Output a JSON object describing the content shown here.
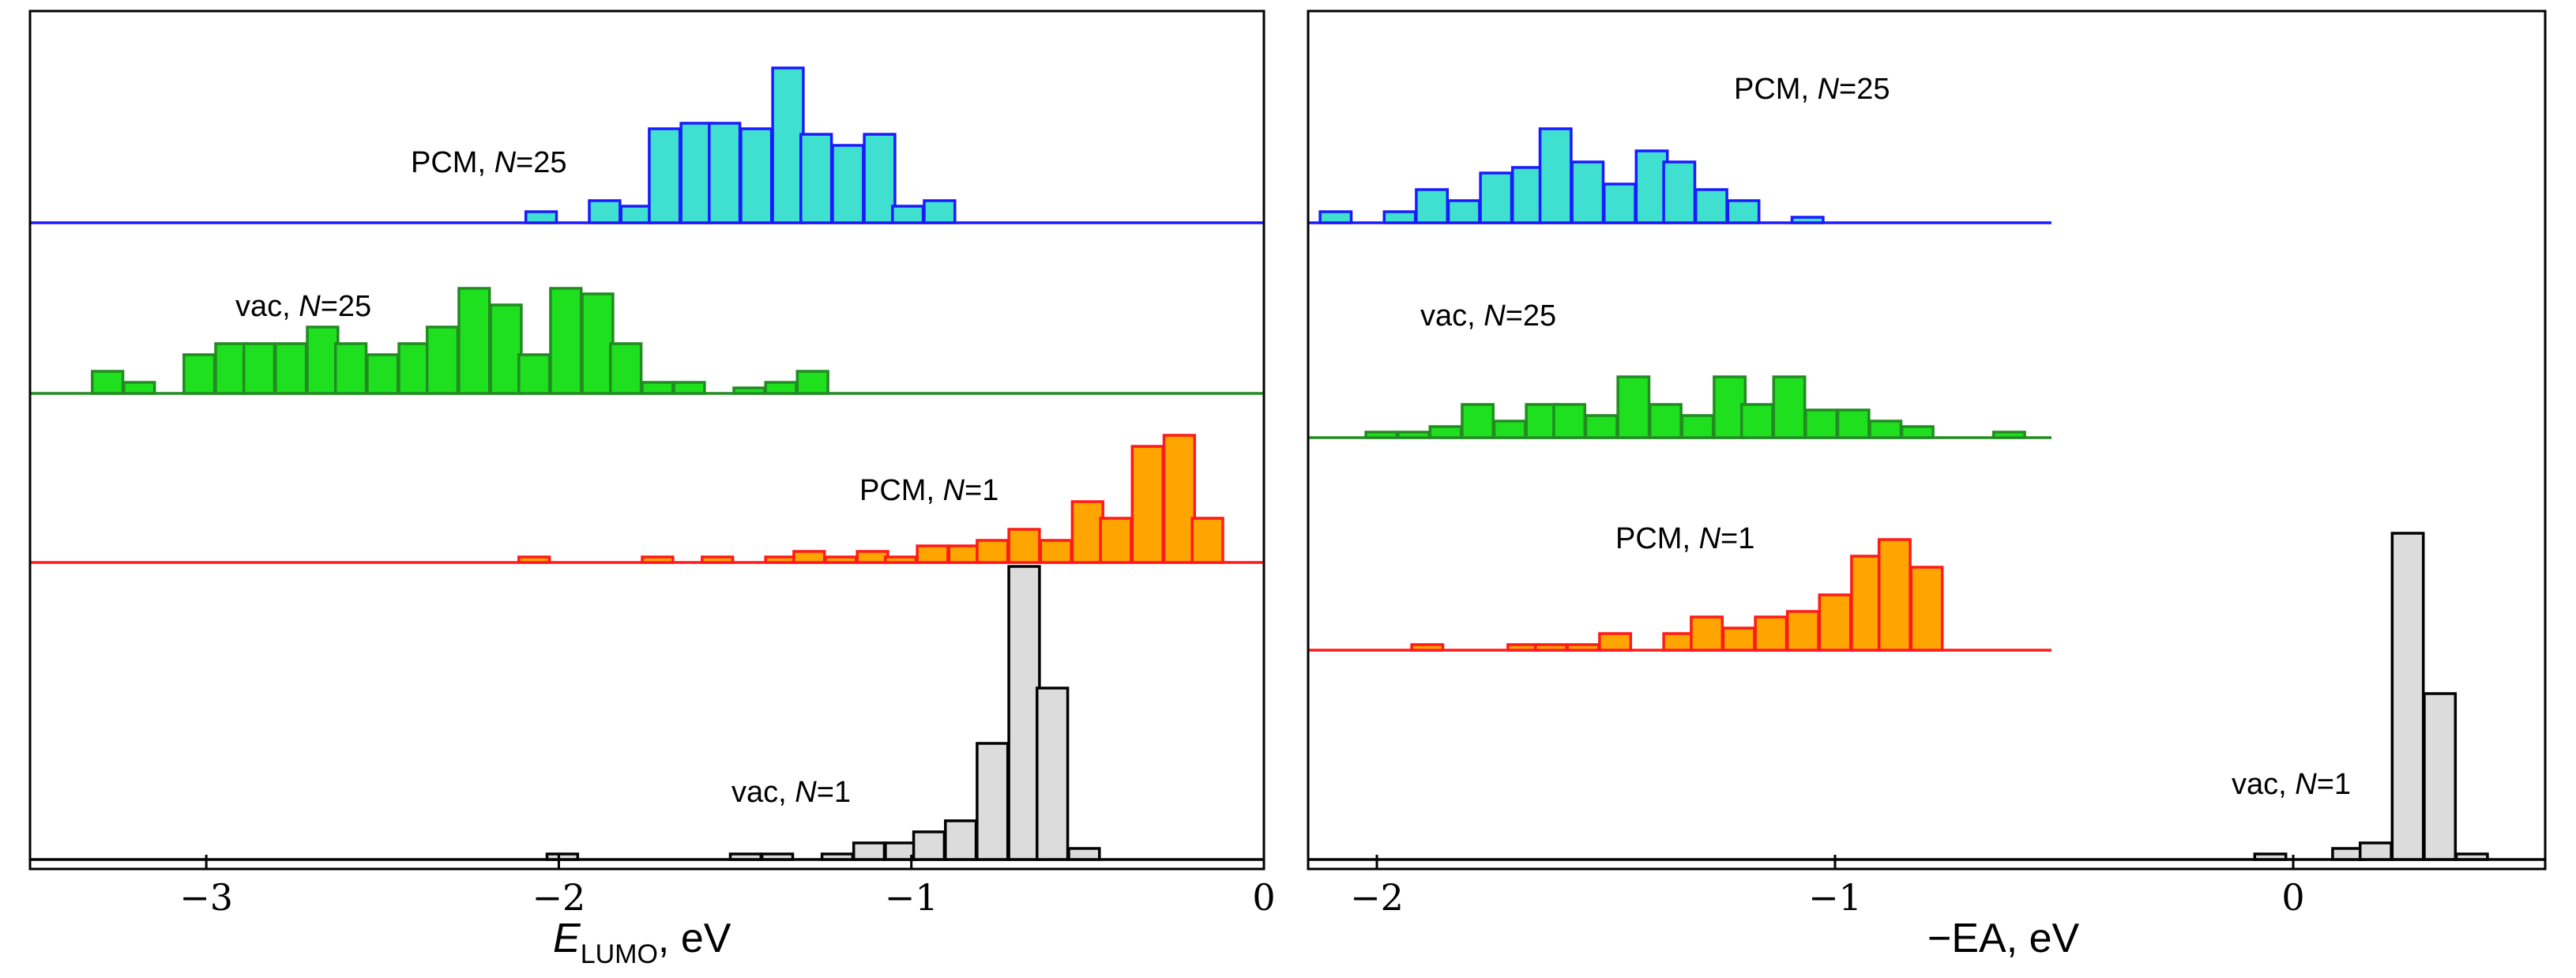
{
  "chart_data": [
    {
      "type": "histogram",
      "panel": "left",
      "xlabel_main": "E",
      "xlabel_sub": "LUMO",
      "xlabel_units": ", eV",
      "xlim": [
        -3.5,
        0
      ],
      "bin_width": 0.087,
      "ticks": [
        {
          "value": -3,
          "label": "−3"
        },
        {
          "value": -2,
          "label": "−2"
        },
        {
          "value": -1,
          "label": "−1"
        },
        {
          "value": 0,
          "label": "0"
        }
      ],
      "series": [
        {
          "name_prefix": "PCM, ",
          "name_italic": "N",
          "name_suffix": "=25",
          "line_color": "#1a1aff",
          "fill_color": "#40e0d0",
          "bins": [
            {
              "x": -2.05,
              "count": 1
            },
            {
              "x": -1.87,
              "count": 2
            },
            {
              "x": -1.78,
              "count": 1.5
            },
            {
              "x": -1.7,
              "count": 8.5
            },
            {
              "x": -1.61,
              "count": 9
            },
            {
              "x": -1.53,
              "count": 9
            },
            {
              "x": -1.44,
              "count": 8.5
            },
            {
              "x": -1.35,
              "count": 14
            },
            {
              "x": -1.27,
              "count": 8
            },
            {
              "x": -1.18,
              "count": 7
            },
            {
              "x": -1.09,
              "count": 8
            },
            {
              "x": -1.01,
              "count": 1.5
            },
            {
              "x": -0.92,
              "count": 2
            }
          ]
        },
        {
          "name_prefix": "vac, ",
          "name_italic": "N",
          "name_suffix": "=25",
          "line_color": "#228b22",
          "fill_color": "#1ee01e",
          "bins": [
            {
              "x": -3.28,
              "count": 2
            },
            {
              "x": -3.19,
              "count": 1
            },
            {
              "x": -3.02,
              "count": 3.5
            },
            {
              "x": -2.93,
              "count": 4.5
            },
            {
              "x": -2.85,
              "count": 4.5
            },
            {
              "x": -2.76,
              "count": 4.5
            },
            {
              "x": -2.67,
              "count": 6
            },
            {
              "x": -2.59,
              "count": 4.5
            },
            {
              "x": -2.5,
              "count": 3.5
            },
            {
              "x": -2.41,
              "count": 4.5
            },
            {
              "x": -2.33,
              "count": 6
            },
            {
              "x": -2.24,
              "count": 9.5
            },
            {
              "x": -2.15,
              "count": 8
            },
            {
              "x": -2.07,
              "count": 3.5
            },
            {
              "x": -1.98,
              "count": 9.5
            },
            {
              "x": -1.89,
              "count": 9
            },
            {
              "x": -1.81,
              "count": 4.5
            },
            {
              "x": -1.72,
              "count": 1
            },
            {
              "x": -1.63,
              "count": 1
            },
            {
              "x": -1.46,
              "count": 0.5
            },
            {
              "x": -1.37,
              "count": 1
            },
            {
              "x": -1.28,
              "count": 2
            }
          ]
        },
        {
          "name_prefix": "PCM, ",
          "name_italic": "N",
          "name_suffix": "=1",
          "line_color": "#ff1a1a",
          "fill_color": "#ffa500",
          "bins": [
            {
              "x": -2.07,
              "count": 0.5
            },
            {
              "x": -1.72,
              "count": 0.5
            },
            {
              "x": -1.55,
              "count": 0.5
            },
            {
              "x": -1.37,
              "count": 0.5
            },
            {
              "x": -1.29,
              "count": 1
            },
            {
              "x": -1.2,
              "count": 0.5
            },
            {
              "x": -1.11,
              "count": 1
            },
            {
              "x": -1.03,
              "count": 0.5
            },
            {
              "x": -0.94,
              "count": 1.5
            },
            {
              "x": -0.85,
              "count": 1.5
            },
            {
              "x": -0.77,
              "count": 2
            },
            {
              "x": -0.68,
              "count": 3
            },
            {
              "x": -0.59,
              "count": 2
            },
            {
              "x": -0.5,
              "count": 5.5
            },
            {
              "x": -0.42,
              "count": 4
            },
            {
              "x": -0.33,
              "count": 10.5
            },
            {
              "x": -0.24,
              "count": 11.5
            },
            {
              "x": -0.16,
              "count": 4
            }
          ]
        },
        {
          "name_prefix": "vac, ",
          "name_italic": "N",
          "name_suffix": "=1",
          "line_color": "#000000",
          "fill_color": "#dcdcdc",
          "bins": [
            {
              "x": -1.99,
              "count": 0.5
            },
            {
              "x": -1.47,
              "count": 0.5
            },
            {
              "x": -1.38,
              "count": 0.5
            },
            {
              "x": -1.21,
              "count": 0.5
            },
            {
              "x": -1.12,
              "count": 1.5
            },
            {
              "x": -1.03,
              "count": 1.5
            },
            {
              "x": -0.95,
              "count": 2.5
            },
            {
              "x": -0.86,
              "count": 3.5
            },
            {
              "x": -0.77,
              "count": 10.5
            },
            {
              "x": -0.68,
              "count": 26.5
            },
            {
              "x": -0.6,
              "count": 15.5
            },
            {
              "x": -0.51,
              "count": 1
            }
          ]
        }
      ]
    },
    {
      "type": "histogram",
      "panel": "right",
      "xlabel_main": "−EA, eV",
      "xlabel_sub": "",
      "xlabel_units": "",
      "xlim": [
        -2.15,
        0.55
      ],
      "bin_width": 0.068,
      "ticks": [
        {
          "value": -2,
          "label": "−2"
        },
        {
          "value": -1,
          "label": "−1"
        },
        {
          "value": 0,
          "label": "0"
        }
      ],
      "series": [
        {
          "name_prefix": "PCM, ",
          "name_italic": "N",
          "name_suffix": "=25",
          "line_color": "#1a1aff",
          "fill_color": "#40e0d0",
          "bins": [
            {
              "x": -2.09,
              "count": 1
            },
            {
              "x": -1.95,
              "count": 1
            },
            {
              "x": -1.88,
              "count": 3
            },
            {
              "x": -1.81,
              "count": 2
            },
            {
              "x": -1.74,
              "count": 4.5
            },
            {
              "x": -1.67,
              "count": 5
            },
            {
              "x": -1.61,
              "count": 8.5
            },
            {
              "x": -1.54,
              "count": 5.5
            },
            {
              "x": -1.47,
              "count": 3.5
            },
            {
              "x": -1.4,
              "count": 6.5
            },
            {
              "x": -1.34,
              "count": 5.5
            },
            {
              "x": -1.27,
              "count": 3
            },
            {
              "x": -1.2,
              "count": 2
            },
            {
              "x": -1.06,
              "count": 0.5
            }
          ]
        },
        {
          "name_prefix": "vac, ",
          "name_italic": "N",
          "name_suffix": "=25",
          "line_color": "#228b22",
          "fill_color": "#1ee01e",
          "bins": [
            {
              "x": -1.99,
              "count": 0.5
            },
            {
              "x": -1.92,
              "count": 0.5
            },
            {
              "x": -1.85,
              "count": 1
            },
            {
              "x": -1.78,
              "count": 3
            },
            {
              "x": -1.71,
              "count": 1.5
            },
            {
              "x": -1.64,
              "count": 3
            },
            {
              "x": -1.58,
              "count": 3
            },
            {
              "x": -1.51,
              "count": 2
            },
            {
              "x": -1.44,
              "count": 5.5
            },
            {
              "x": -1.37,
              "count": 3
            },
            {
              "x": -1.3,
              "count": 2
            },
            {
              "x": -1.23,
              "count": 5.5
            },
            {
              "x": -1.17,
              "count": 3
            },
            {
              "x": -1.1,
              "count": 5.5
            },
            {
              "x": -1.03,
              "count": 2.5
            },
            {
              "x": -0.96,
              "count": 2.5
            },
            {
              "x": -0.89,
              "count": 1.5
            },
            {
              "x": -0.82,
              "count": 1
            },
            {
              "x": -0.62,
              "count": 0.5
            }
          ]
        },
        {
          "name_prefix": "PCM, ",
          "name_italic": "N",
          "name_suffix": "=1",
          "line_color": "#ff1a1a",
          "fill_color": "#ffa500",
          "bins": [
            {
              "x": -1.89,
              "count": 0.5
            },
            {
              "x": -1.68,
              "count": 0.5
            },
            {
              "x": -1.62,
              "count": 0.5
            },
            {
              "x": -1.55,
              "count": 0.5
            },
            {
              "x": -1.48,
              "count": 1.5
            },
            {
              "x": -1.34,
              "count": 1.5
            },
            {
              "x": -1.28,
              "count": 3
            },
            {
              "x": -1.21,
              "count": 2
            },
            {
              "x": -1.14,
              "count": 3
            },
            {
              "x": -1.07,
              "count": 3.5
            },
            {
              "x": -1.0,
              "count": 5
            },
            {
              "x": -0.93,
              "count": 8.5
            },
            {
              "x": -0.87,
              "count": 10
            },
            {
              "x": -0.8,
              "count": 7.5
            }
          ]
        },
        {
          "name_prefix": "vac, ",
          "name_italic": "N",
          "name_suffix": "=1",
          "line_color": "#000000",
          "fill_color": "#dcdcdc",
          "bins": [
            {
              "x": -0.05,
              "count": 0.5
            },
            {
              "x": 0.12,
              "count": 1
            },
            {
              "x": 0.18,
              "count": 1.5
            },
            {
              "x": 0.25,
              "count": 29.5
            },
            {
              "x": 0.32,
              "count": 15
            },
            {
              "x": 0.39,
              "count": 0.5
            }
          ]
        }
      ]
    }
  ]
}
